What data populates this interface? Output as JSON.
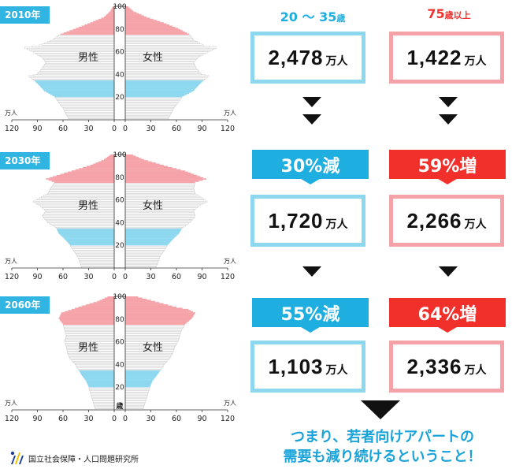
{
  "chart_data": [
    {
      "type": "population-pyramid",
      "year_label": "2010年",
      "male_label": "男性",
      "female_label": "女性",
      "unit_label": "万人",
      "x_ticks_left": [
        "120",
        "90",
        "60",
        "30",
        "0"
      ],
      "x_ticks_right": [
        "0",
        "30",
        "60",
        "90",
        "120"
      ],
      "y_ticks": [
        "20",
        "40",
        "60",
        "80",
        "100"
      ],
      "xlim": [
        0,
        120
      ],
      "ylim": [
        0,
        100
      ],
      "highlight_ranges": [
        {
          "from": 20,
          "to": 35,
          "color": "#8dd8ef"
        },
        {
          "from": 75,
          "to": 100,
          "color": "#f5a3a8"
        }
      ],
      "male_profile": [
        [
          0,
          53
        ],
        [
          10,
          60
        ],
        [
          20,
          70
        ],
        [
          25,
          82
        ],
        [
          30,
          88
        ],
        [
          35,
          95
        ],
        [
          38,
          100
        ],
        [
          40,
          90
        ],
        [
          45,
          84
        ],
        [
          50,
          80
        ],
        [
          55,
          85
        ],
        [
          60,
          97
        ],
        [
          63,
          105
        ],
        [
          65,
          88
        ],
        [
          70,
          72
        ],
        [
          75,
          63
        ],
        [
          80,
          45
        ],
        [
          85,
          28
        ],
        [
          90,
          12
        ],
        [
          95,
          5
        ],
        [
          100,
          1
        ]
      ],
      "female_profile": [
        [
          0,
          50
        ],
        [
          10,
          57
        ],
        [
          20,
          67
        ],
        [
          25,
          80
        ],
        [
          30,
          86
        ],
        [
          35,
          93
        ],
        [
          38,
          98
        ],
        [
          40,
          89
        ],
        [
          45,
          83
        ],
        [
          50,
          80
        ],
        [
          55,
          86
        ],
        [
          60,
          99
        ],
        [
          63,
          107
        ],
        [
          65,
          92
        ],
        [
          70,
          80
        ],
        [
          75,
          75
        ],
        [
          80,
          62
        ],
        [
          85,
          45
        ],
        [
          90,
          25
        ],
        [
          95,
          10
        ],
        [
          100,
          2
        ]
      ]
    },
    {
      "type": "population-pyramid",
      "year_label": "2030年",
      "male_label": "男性",
      "female_label": "女性",
      "unit_label": "万人",
      "x_ticks_left": [
        "120",
        "90",
        "60",
        "30",
        "0"
      ],
      "x_ticks_right": [
        "0",
        "30",
        "60",
        "90",
        "120"
      ],
      "y_ticks": [
        "20",
        "40",
        "60",
        "80",
        "100"
      ],
      "xlim": [
        0,
        120
      ],
      "ylim": [
        0,
        100
      ],
      "highlight_ranges": [
        {
          "from": 20,
          "to": 35,
          "color": "#8dd8ef"
        },
        {
          "from": 75,
          "to": 100,
          "color": "#f5a3a8"
        }
      ],
      "male_profile": [
        [
          0,
          38
        ],
        [
          10,
          43
        ],
        [
          20,
          52
        ],
        [
          25,
          58
        ],
        [
          30,
          65
        ],
        [
          35,
          68
        ],
        [
          40,
          78
        ],
        [
          45,
          84
        ],
        [
          50,
          80
        ],
        [
          55,
          88
        ],
        [
          58,
          95
        ],
        [
          60,
          90
        ],
        [
          65,
          78
        ],
        [
          70,
          74
        ],
        [
          75,
          70
        ],
        [
          78,
          80
        ],
        [
          80,
          72
        ],
        [
          85,
          50
        ],
        [
          90,
          28
        ],
        [
          95,
          12
        ],
        [
          100,
          3
        ]
      ],
      "female_profile": [
        [
          0,
          36
        ],
        [
          10,
          41
        ],
        [
          20,
          50
        ],
        [
          25,
          56
        ],
        [
          30,
          63
        ],
        [
          35,
          67
        ],
        [
          40,
          76
        ],
        [
          45,
          82
        ],
        [
          50,
          80
        ],
        [
          55,
          88
        ],
        [
          58,
          96
        ],
        [
          60,
          92
        ],
        [
          65,
          82
        ],
        [
          70,
          80
        ],
        [
          75,
          82
        ],
        [
          78,
          95
        ],
        [
          80,
          88
        ],
        [
          85,
          70
        ],
        [
          90,
          45
        ],
        [
          95,
          22
        ],
        [
          100,
          6
        ]
      ]
    },
    {
      "type": "population-pyramid",
      "year_label": "2060年",
      "male_label": "男性",
      "female_label": "女性",
      "unit_label": "万人",
      "age_unit_label": "歳",
      "x_ticks_left": [
        "120",
        "90",
        "60",
        "30",
        "0"
      ],
      "x_ticks_right": [
        "0",
        "30",
        "60",
        "90",
        "120"
      ],
      "y_ticks": [
        "20",
        "40",
        "60",
        "80",
        "100"
      ],
      "xlim": [
        0,
        120
      ],
      "ylim": [
        0,
        100
      ],
      "highlight_ranges": [
        {
          "from": 20,
          "to": 35,
          "color": "#8dd8ef"
        },
        {
          "from": 75,
          "to": 100,
          "color": "#f5a3a8"
        }
      ],
      "male_profile": [
        [
          0,
          22
        ],
        [
          10,
          26
        ],
        [
          20,
          30
        ],
        [
          25,
          33
        ],
        [
          30,
          38
        ],
        [
          35,
          42
        ],
        [
          40,
          46
        ],
        [
          45,
          52
        ],
        [
          50,
          55
        ],
        [
          55,
          56
        ],
        [
          60,
          58
        ],
        [
          65,
          56
        ],
        [
          70,
          58
        ],
        [
          75,
          60
        ],
        [
          80,
          65
        ],
        [
          85,
          62
        ],
        [
          90,
          42
        ],
        [
          95,
          20
        ],
        [
          100,
          5
        ]
      ],
      "female_profile": [
        [
          0,
          21
        ],
        [
          10,
          25
        ],
        [
          20,
          29
        ],
        [
          25,
          32
        ],
        [
          30,
          37
        ],
        [
          35,
          42
        ],
        [
          40,
          46
        ],
        [
          45,
          52
        ],
        [
          50,
          56
        ],
        [
          55,
          58
        ],
        [
          60,
          62
        ],
        [
          65,
          64
        ],
        [
          70,
          66
        ],
        [
          75,
          70
        ],
        [
          80,
          78
        ],
        [
          85,
          82
        ],
        [
          88,
          74
        ],
        [
          90,
          60
        ],
        [
          95,
          35
        ],
        [
          100,
          10
        ]
      ]
    }
  ],
  "columns": {
    "young": {
      "label_num": "20 ～ 35",
      "label_suffix": "歳",
      "color": "#1eaee0"
    },
    "old": {
      "label_num": "75",
      "label_suffix": "歳以上",
      "color": "#f2302b"
    }
  },
  "values": {
    "y2010_young": "2,478",
    "y2010_old": "1,422",
    "y2030_young": "1,720",
    "y2030_old": "2,266",
    "y2060_young": "1,103",
    "y2060_old": "2,336",
    "unit": "万人"
  },
  "changes": {
    "y2030_young": "30%減",
    "y2030_old": "59%増",
    "y2060_young": "55%減",
    "y2060_old": "64%増"
  },
  "conclusion": {
    "line1": "つまり、若者向けアパートの",
    "line2": "需要も減り続けるということ！"
  },
  "source": {
    "name": "国立社会保障・人口問題研究所",
    "logo_icon": "ipss-logo-icon"
  }
}
